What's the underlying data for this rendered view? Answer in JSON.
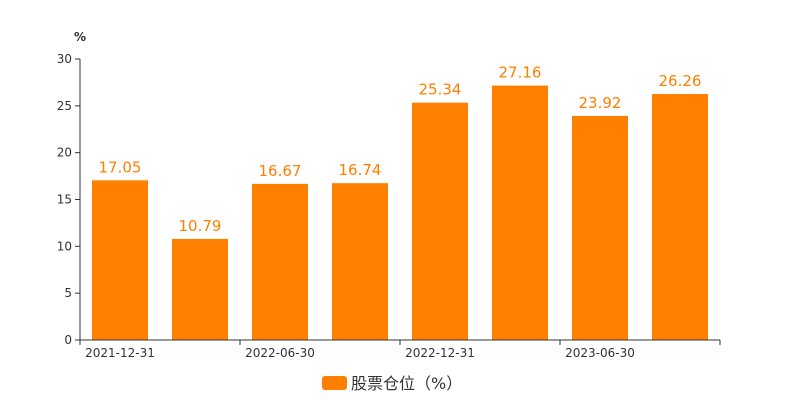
{
  "chart_data": {
    "type": "bar",
    "categories": [
      "2021-12-31",
      "",
      "2022-06-30",
      "",
      "2022-12-31",
      "",
      "2023-06-30",
      ""
    ],
    "values": [
      17.05,
      10.79,
      16.67,
      16.74,
      25.34,
      27.16,
      23.92,
      26.26
    ],
    "value_labels": [
      "17.05",
      "10.79",
      "16.67",
      "16.74",
      "25.34",
      "27.16",
      "23.92",
      "26.26"
    ],
    "ylabel": "%",
    "ylim": [
      0,
      30
    ],
    "yticks": [
      "0",
      "5",
      "10",
      "15",
      "20",
      "25",
      "30"
    ],
    "series": [
      {
        "name": "股票仓位（%）",
        "color": "#ff7f00"
      }
    ],
    "legend": "bottom-center",
    "grid": false
  }
}
